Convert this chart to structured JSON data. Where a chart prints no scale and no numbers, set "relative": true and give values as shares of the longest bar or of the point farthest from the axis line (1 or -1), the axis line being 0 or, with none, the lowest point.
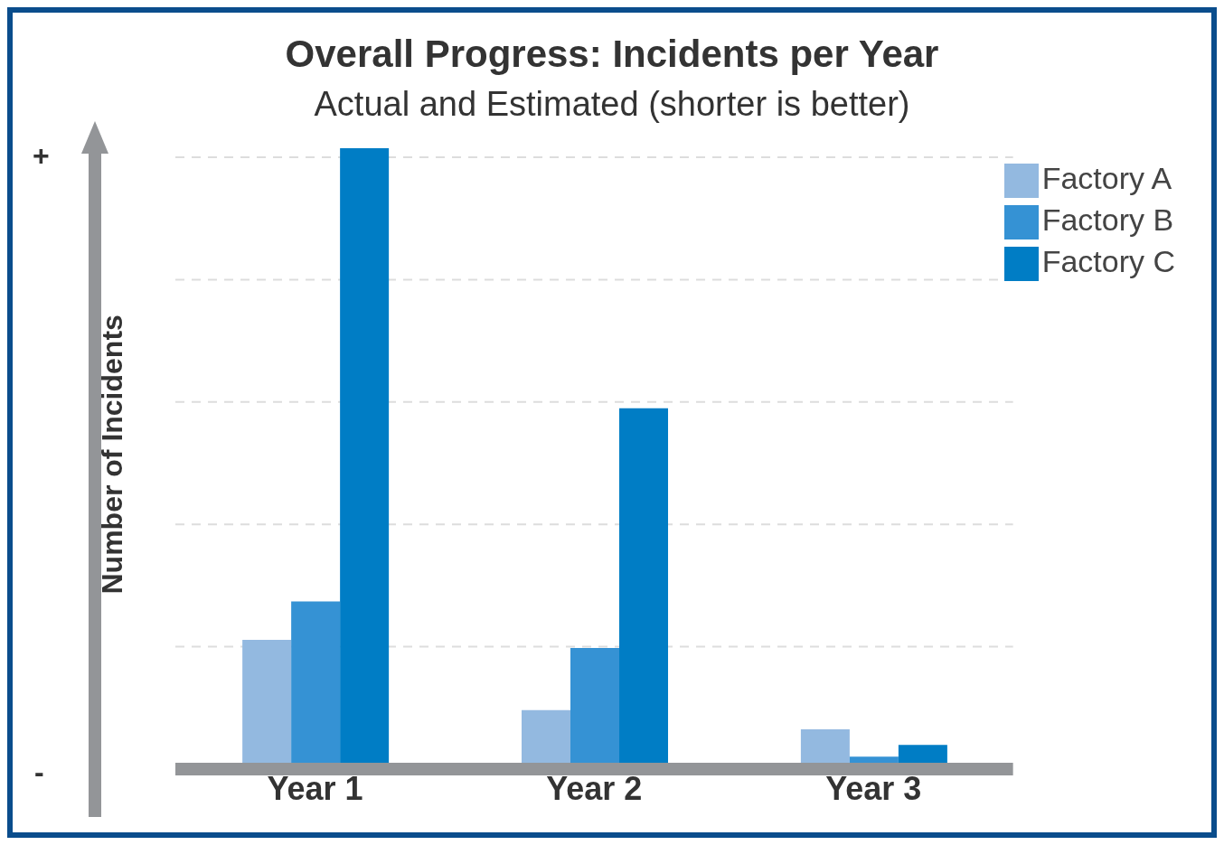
{
  "chart_data": {
    "type": "bar",
    "title": "Overall Progress: Incidents per Year",
    "subtitle": "Actual and Estimated (shorter is better)",
    "ylabel": "Number of Incidents",
    "categories": [
      "Year 1",
      "Year 2",
      "Year 3"
    ],
    "relative": true,
    "grid": "y",
    "legend": "top right",
    "annotations": [
      "+",
      "-"
    ],
    "series": [
      {
        "name": "Factory A",
        "color": "#93b9e0",
        "values": [
          0.208,
          0.095,
          0.064
        ]
      },
      {
        "name": "Factory B",
        "color": "#3592d4",
        "values": [
          0.27,
          0.195,
          0.02
        ]
      },
      {
        "name": "Factory C",
        "color": "#007dc5",
        "values": [
          1,
          0.581,
          0.039
        ]
      }
    ]
  }
}
